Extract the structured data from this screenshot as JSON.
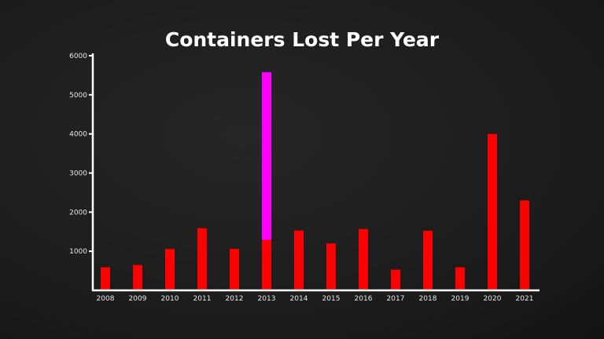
{
  "chart_data": {
    "type": "bar",
    "stacked": true,
    "title": "Containers Lost Per Year",
    "xlabel": "",
    "ylabel": "",
    "categories": [
      "2008",
      "2009",
      "2010",
      "2011",
      "2012",
      "2013",
      "2014",
      "2015",
      "2016",
      "2017",
      "2018",
      "2019",
      "2020",
      "2021"
    ],
    "series": [
      {
        "color": "#ff0000",
        "values": [
          590,
          650,
          1060,
          1590,
          1060,
          1290,
          1530,
          1200,
          1570,
          530,
          1525,
          590,
          4000,
          2300
        ]
      },
      {
        "color": "#ff00ff",
        "values": [
          0,
          0,
          0,
          0,
          0,
          4290,
          0,
          0,
          0,
          0,
          0,
          0,
          0,
          0
        ]
      }
    ],
    "yticks": [
      1000,
      2000,
      3000,
      4000,
      5000,
      6000
    ],
    "ylim": [
      0,
      6000
    ],
    "grid": false,
    "legend": "none",
    "background": "#1c1c1c",
    "axis_color": "#ffffff"
  }
}
